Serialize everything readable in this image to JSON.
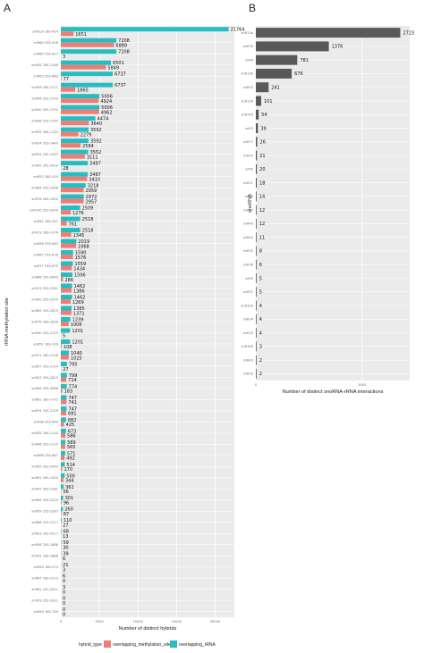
{
  "panels": {
    "a": "A",
    "b": "B"
  },
  "colors": {
    "panel_bg": "#ebebeb",
    "grid": "#ffffff",
    "overlapping_methylation_site": "#f07c74",
    "overlapping_rrna": "#26bdc1",
    "bar_b": "#595959"
  },
  "chart_data": [
    {
      "type": "bar",
      "orientation": "horizontal",
      "xlabel": "Number of distinct hybrids",
      "ylabel": "rRNA methylation site",
      "xlim": [
        0,
        22500
      ],
      "xticks": [
        0,
        5000,
        10000,
        15000,
        20000
      ],
      "xtick_labels": [
        "0",
        "5000",
        "10000",
        "15000",
        "20000"
      ],
      "grid": true,
      "legend": {
        "title": "hybrid_type",
        "position": "bottom",
        "entries": [
          "overlapping_methylation_site",
          "overlapping_rRNA"
        ]
      },
      "categories": [
        "snR2/3 18S-414",
        "snR60 25S-908",
        "snR80 25S-817",
        "snR45 18S-1269",
        "snR63 25S-683",
        "snR49 18S-1271",
        "snR56 25S-2793",
        "snR40 25S-2791",
        "snR36 25S-1767",
        "snR35 18S-1153",
        "snR24 25S-1449",
        "snR24 25S-1437",
        "snR42 25S-2920",
        "snR52 18S-420",
        "snR64 25S-2948",
        "snR78 18S-1902",
        "snR190 25S-2009",
        "snR41 18S-541",
        "snR13 18S-1376",
        "snR58 25S-663",
        "snR87 25S-876",
        "snR77 25S-675",
        "snR66 25S-2640",
        "snR13 25S-2281",
        "snR50 25S-2255",
        "snR62 25S-2619",
        "snR76 18S-1639",
        "snR40 25S-2729",
        "snR51 18S-100",
        "snR71 18S-2196",
        "snR57 25S-2724",
        "snR47 25S-2815",
        "snR65 25S-3088",
        "snR61 18S-1772",
        "snR74 25S-2729",
        "snR38 25S-649",
        "snR55 18S-1120",
        "snR48 25S-1125",
        "snR68 25S-867",
        "snR59 25S-2493",
        "snR61 18S-1450",
        "snR47 18S-1281",
        "snR69 25S-2220",
        "snR59 25S-2287",
        "snR66 25S-2117",
        "snR53 25S-2517",
        "snR56 25S-1888",
        "snR52 18S-1888",
        "snR54 18S-974",
        "snR67 18S-1223",
        "snR81 25S-2421",
        "snR53 25S-2921",
        "snR59 18S-783"
      ],
      "series": [
        {
          "name": "overlapping_methylation_site",
          "values": [
            1651,
            6889,
            3,
            5849,
            77,
            1865,
            4924,
            4962,
            3640,
            2279,
            2564,
            3111,
            28,
            3410,
            2959,
            2957,
            1276,
            761,
            1345,
            1968,
            1576,
            1434,
            286,
            1386,
            1269,
            1371,
            1008,
            5,
            108,
            1025,
            27,
            714,
            183,
            741,
            691,
            425,
            586,
            565,
            492,
            170,
            344,
            56,
            96,
            87,
            27,
            13,
            30,
            6,
            3,
            0,
            0,
            0,
            0
          ]
        },
        {
          "name": "overlapping_rRNA",
          "values": [
            21764,
            7208,
            7208,
            6501,
            6737,
            6737,
            5006,
            5006,
            4474,
            3592,
            3592,
            3552,
            3497,
            3497,
            3218,
            2972,
            2509,
            2518,
            2518,
            2019,
            1590,
            1559,
            1506,
            1462,
            1462,
            1385,
            1239,
            1201,
            1201,
            1040,
            795,
            799,
            774,
            747,
            747,
            682,
            673,
            589,
            571,
            514,
            500,
            361,
            301,
            260,
            110,
            68,
            59,
            39,
            21,
            6,
            3,
            0,
            0
          ]
        }
      ]
    },
    {
      "type": "bar",
      "orientation": "horizontal",
      "xlabel": "Number of distinct snoRNA-rRNA interactions",
      "ylabel": "snoRNA",
      "xlim": [
        0,
        2900
      ],
      "xticks": [
        0,
        2000
      ],
      "xtick_labels": [
        "0",
        "2000"
      ],
      "grid": true,
      "categories": [
        "snR13a",
        "snR30",
        "snR4",
        "snR13b",
        "snR10",
        "snR128",
        "snR190",
        "snR3",
        "snR77",
        "snR24",
        "snR5",
        "snR11",
        "snR8",
        "snR17",
        "snR40",
        "snR44",
        "snR35",
        "snR36",
        "snR9",
        "snR37",
        "snR10b",
        "snR34",
        "snR33",
        "snR189",
        "snR43",
        "snR39"
      ],
      "values": [
        2723,
        1376,
        781,
        676,
        241,
        101,
        54,
        39,
        26,
        21,
        20,
        18,
        14,
        12,
        12,
        11,
        8,
        6,
        5,
        5,
        4,
        4,
        4,
        3,
        2,
        2
      ]
    }
  ]
}
